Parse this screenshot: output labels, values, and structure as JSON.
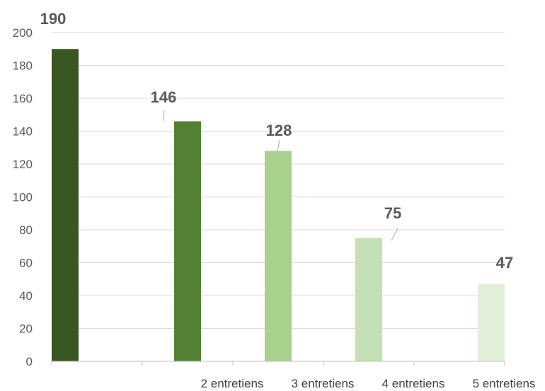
{
  "chart_data": {
    "type": "bar",
    "categories": [
      "",
      "2 entretiens",
      "3 entretiens",
      "4 entretiens",
      "5 entretiens"
    ],
    "values": [
      190,
      146,
      128,
      75,
      47
    ],
    "data_labels": [
      "190",
      "146",
      "128",
      "75",
      "47"
    ],
    "bar_colors": [
      "#385723",
      "#548235",
      "#a9d18e",
      "#c5e0b4",
      "#e2f0d9"
    ],
    "ylim": [
      0,
      200
    ],
    "ytick_step": 20,
    "yticks": [
      "0",
      "20",
      "40",
      "60",
      "80",
      "100",
      "120",
      "140",
      "160",
      "180",
      "200"
    ],
    "grid": true,
    "title": "",
    "xlabel": "",
    "ylabel": ""
  }
}
